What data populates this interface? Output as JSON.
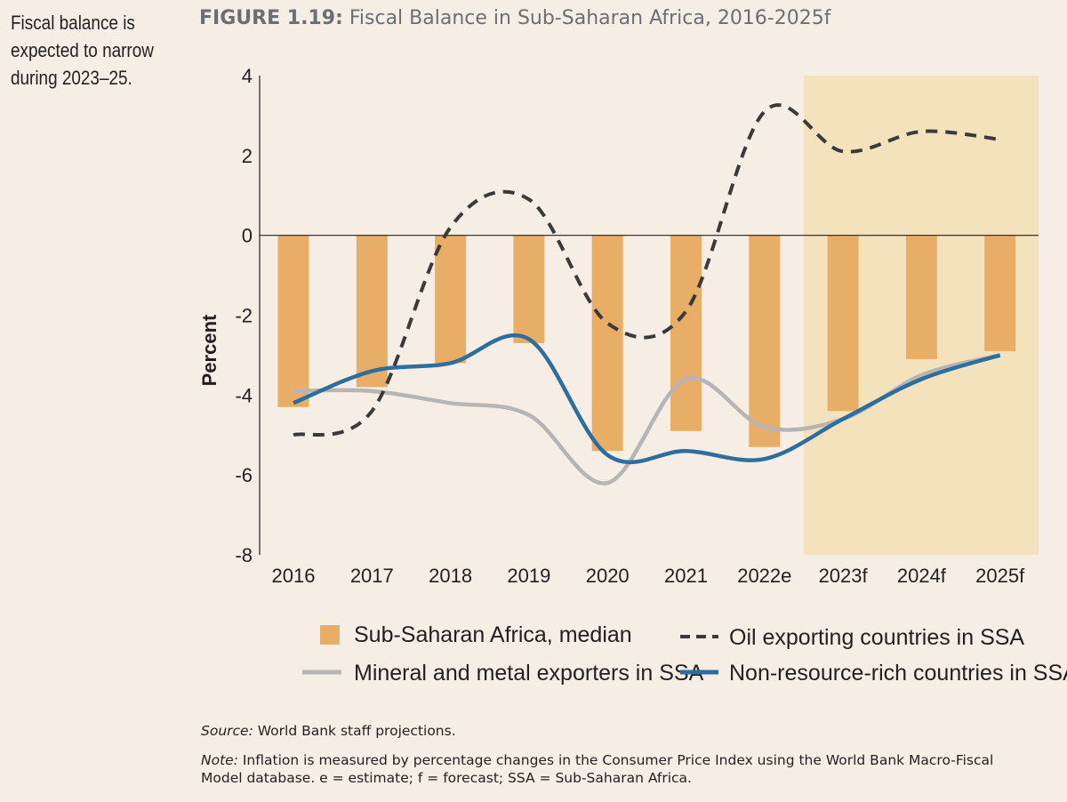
{
  "side_note": "Fiscal balance is expected to narrow during 2023–25.",
  "figure": {
    "number": "FIGURE 1.19:",
    "title": "Fiscal Balance in Sub-Saharan Africa, 2016-2025f"
  },
  "source": {
    "label": "Source:",
    "text": "World Bank staff projections."
  },
  "note": {
    "label": "Note:",
    "text": "Inflation is measured by percentage changes in the Consumer Price Index using the World Bank Macro-Fiscal Model database. e = estimate; f = forecast; SSA = Sub-Saharan Africa."
  },
  "colors": {
    "bar": "#e8ae68",
    "forecast_shade": "#f4e2bc",
    "oil": "#3a3a3a",
    "mineral": "#b7b5b4",
    "nonresource": "#2e6e9e"
  },
  "chart_data": {
    "type": "bar",
    "categories": [
      "2016",
      "2017",
      "2018",
      "2019",
      "2020",
      "2021",
      "2022e",
      "2023f",
      "2024f",
      "2025f"
    ],
    "ylabel": "Percent",
    "ylim": [
      -8,
      4
    ],
    "yticks": [
      "4",
      "2",
      "0",
      "-2",
      "-4",
      "-6",
      "-8"
    ],
    "forecast_shaded_from": "2023f",
    "series": [
      {
        "name": "Sub-Saharan Africa, median",
        "kind": "bar",
        "values": [
          -4.3,
          -3.8,
          -3.2,
          -2.7,
          -5.4,
          -4.9,
          -5.3,
          -4.4,
          -3.1,
          -2.9
        ]
      },
      {
        "name": "Oil exporting countries in SSA",
        "kind": "dashed-line",
        "values": [
          -5.0,
          -4.4,
          0.2,
          0.9,
          -2.2,
          -1.9,
          3.1,
          2.1,
          2.6,
          2.4
        ]
      },
      {
        "name": "Mineral and metal exporters in SSA",
        "kind": "line",
        "values": [
          -3.9,
          -3.9,
          -4.2,
          -4.5,
          -6.2,
          -3.6,
          -4.8,
          -4.6,
          -3.5,
          -3.0
        ]
      },
      {
        "name": "Non-resource-rich countries in SSA",
        "kind": "line",
        "values": [
          -4.2,
          -3.4,
          -3.2,
          -2.6,
          -5.5,
          -5.4,
          -5.6,
          -4.6,
          -3.6,
          -3.0
        ]
      }
    ]
  }
}
